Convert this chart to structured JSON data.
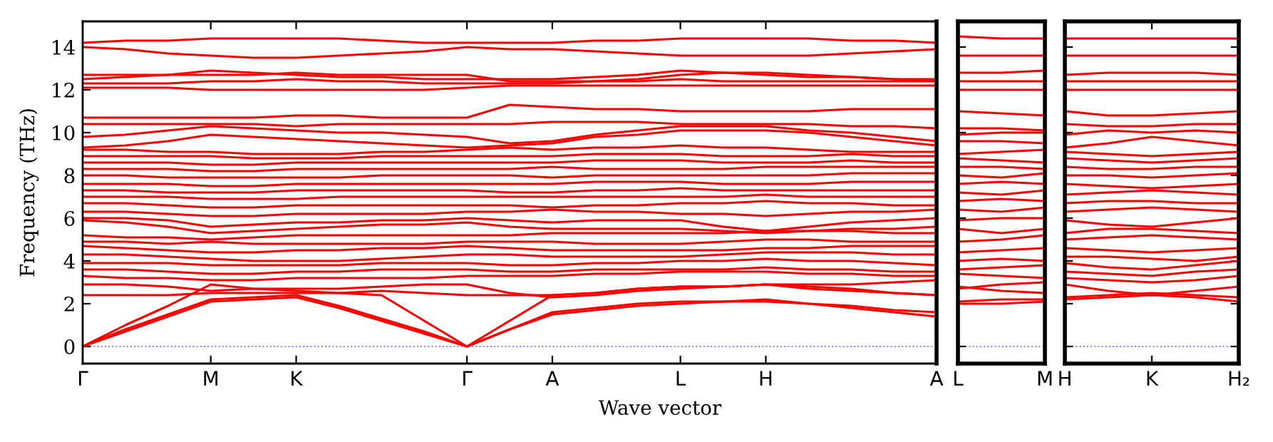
{
  "chart_data": [
    {
      "type": "line",
      "ylabel": "Frequency (THz)",
      "xlabel": "Wave vector",
      "ylim": [
        -0.8,
        15.2
      ],
      "yticks": [
        0,
        2,
        4,
        6,
        8,
        10,
        12,
        14
      ],
      "categories": [
        "Γ",
        null,
        null,
        "M",
        null,
        "K",
        null,
        null,
        null,
        "Γ",
        null,
        "A",
        null,
        null,
        "L",
        null,
        "H",
        null,
        null,
        null,
        "A"
      ],
      "grid": false,
      "legend": false,
      "marker": "none",
      "line_style": "solid",
      "ref_lines": [
        {
          "axis": "y",
          "value": 0,
          "color": "#8080ff",
          "line_style": "dotted"
        }
      ],
      "series": [
        {
          "color": "#ff0000",
          "values": [
            0,
            0.7,
            1.4,
            2.1,
            2.2,
            2.3,
            1.8,
            1.2,
            0.6,
            0,
            0.8,
            1.5,
            1.7,
            1.9,
            2.0,
            2.1,
            2.1,
            2.0,
            1.8,
            1.6,
            1.4
          ]
        },
        {
          "color": "#ff0000",
          "values": [
            0,
            0.8,
            1.5,
            2.2,
            2.3,
            2.4,
            1.9,
            1.3,
            0.7,
            0,
            0.8,
            1.6,
            1.8,
            2.0,
            2.1,
            2.1,
            2.2,
            2.0,
            1.9,
            1.7,
            1.6
          ]
        },
        {
          "color": "#ff0000",
          "values": [
            0,
            1.0,
            1.9,
            2.9,
            2.7,
            2.6,
            2.5,
            2.4,
            1.2,
            0,
            1.2,
            2.4,
            2.5,
            2.7,
            2.8,
            2.8,
            2.9,
            2.8,
            2.7,
            2.5,
            2.4
          ]
        },
        {
          "color": "#ff0000",
          "values": [
            2.4,
            2.4,
            2.4,
            2.5,
            2.5,
            2.5,
            2.5,
            2.6,
            2.5,
            2.4,
            2.4,
            2.4,
            2.5,
            2.7,
            2.8,
            2.8,
            2.9,
            2.7,
            2.6,
            2.5,
            2.4
          ]
        },
        {
          "color": "#ff0000",
          "values": [
            2.9,
            2.9,
            2.8,
            2.6,
            2.7,
            2.7,
            2.7,
            2.8,
            2.9,
            2.9,
            2.5,
            2.3,
            2.4,
            2.6,
            2.7,
            2.8,
            2.9,
            2.9,
            2.9,
            3.0,
            3.1
          ]
        },
        {
          "color": "#ff0000",
          "values": [
            3.3,
            3.2,
            3.2,
            3.1,
            3.1,
            3.2,
            3.2,
            3.2,
            3.2,
            3.3,
            3.3,
            3.3,
            3.4,
            3.4,
            3.5,
            3.5,
            3.5,
            3.4,
            3.4,
            3.3,
            3.3
          ]
        },
        {
          "color": "#ff0000",
          "values": [
            3.6,
            3.6,
            3.5,
            3.4,
            3.4,
            3.5,
            3.5,
            3.6,
            3.6,
            3.6,
            3.5,
            3.5,
            3.6,
            3.6,
            3.6,
            3.6,
            3.7,
            3.6,
            3.6,
            3.5,
            3.5
          ]
        },
        {
          "color": "#ff0000",
          "values": [
            3.9,
            3.9,
            3.9,
            3.8,
            3.8,
            3.8,
            3.8,
            3.9,
            3.9,
            3.9,
            3.8,
            3.8,
            3.9,
            3.9,
            4.0,
            4.0,
            4.1,
            4.0,
            4.0,
            3.9,
            3.8
          ]
        },
        {
          "color": "#ff0000",
          "values": [
            4.3,
            4.3,
            4.2,
            4.1,
            4.0,
            4.0,
            4.0,
            4.1,
            4.2,
            4.3,
            4.3,
            4.2,
            4.2,
            4.2,
            4.2,
            4.3,
            4.4,
            4.4,
            4.4,
            4.3,
            4.3
          ]
        },
        {
          "color": "#ff0000",
          "values": [
            4.7,
            4.6,
            4.5,
            4.4,
            4.4,
            4.5,
            4.5,
            4.6,
            4.6,
            4.7,
            4.6,
            4.5,
            4.5,
            4.5,
            4.5,
            4.5,
            4.6,
            4.6,
            4.7,
            4.7,
            4.7
          ]
        },
        {
          "color": "#ff0000",
          "values": [
            4.9,
            4.9,
            4.8,
            4.9,
            4.8,
            4.8,
            4.8,
            4.8,
            4.8,
            4.9,
            4.9,
            4.9,
            4.8,
            4.8,
            4.8,
            4.9,
            5.0,
            5.0,
            4.9,
            4.9,
            4.9
          ]
        },
        {
          "color": "#ff0000",
          "values": [
            5.2,
            5.1,
            5.1,
            5.0,
            5.1,
            5.2,
            5.2,
            5.2,
            5.2,
            5.2,
            5.2,
            5.3,
            5.3,
            5.3,
            5.3,
            5.3,
            5.4,
            5.4,
            5.4,
            5.3,
            5.3
          ]
        },
        {
          "color": "#ff0000",
          "values": [
            5.9,
            5.8,
            5.6,
            5.3,
            5.4,
            5.5,
            5.6,
            5.7,
            5.7,
            5.8,
            5.6,
            5.5,
            5.5,
            5.5,
            5.5,
            5.4,
            5.3,
            5.4,
            5.5,
            5.5,
            5.6
          ]
        },
        {
          "color": "#ff0000",
          "values": [
            6.0,
            6.0,
            5.9,
            5.6,
            5.7,
            5.8,
            5.8,
            5.9,
            5.9,
            6.0,
            5.9,
            5.8,
            5.9,
            5.9,
            5.9,
            5.6,
            5.4,
            5.6,
            5.8,
            5.9,
            6.0
          ]
        },
        {
          "color": "#ff0000",
          "values": [
            6.3,
            6.3,
            6.2,
            6.1,
            6.1,
            6.2,
            6.2,
            6.2,
            6.2,
            6.3,
            6.3,
            6.4,
            6.3,
            6.3,
            6.2,
            6.2,
            6.1,
            6.2,
            6.3,
            6.3,
            6.4
          ]
        },
        {
          "color": "#ff0000",
          "values": [
            6.7,
            6.7,
            6.6,
            6.5,
            6.5,
            6.6,
            6.6,
            6.6,
            6.6,
            6.6,
            6.6,
            6.5,
            6.6,
            6.6,
            6.7,
            6.7,
            6.8,
            6.7,
            6.7,
            6.6,
            6.6
          ]
        },
        {
          "color": "#ff0000",
          "values": [
            7.0,
            7.0,
            7.0,
            6.9,
            6.9,
            6.9,
            7.0,
            7.0,
            7.0,
            7.0,
            7.0,
            7.0,
            7.0,
            7.0,
            7.0,
            7.0,
            7.1,
            7.0,
            7.0,
            7.0,
            7.0
          ]
        },
        {
          "color": "#ff0000",
          "values": [
            7.3,
            7.3,
            7.2,
            7.2,
            7.2,
            7.3,
            7.3,
            7.3,
            7.3,
            7.3,
            7.2,
            7.2,
            7.3,
            7.3,
            7.4,
            7.3,
            7.3,
            7.3,
            7.3,
            7.3,
            7.3
          ]
        },
        {
          "color": "#ff0000",
          "values": [
            7.6,
            7.6,
            7.6,
            7.5,
            7.5,
            7.6,
            7.6,
            7.6,
            7.6,
            7.6,
            7.6,
            7.6,
            7.7,
            7.7,
            7.7,
            7.6,
            7.6,
            7.6,
            7.7,
            7.7,
            7.7
          ]
        },
        {
          "color": "#ff0000",
          "values": [
            8.0,
            8.0,
            7.9,
            7.9,
            7.9,
            7.9,
            7.9,
            8.0,
            8.0,
            8.0,
            8.0,
            7.9,
            8.0,
            8.0,
            8.0,
            8.0,
            8.0,
            8.0,
            8.1,
            8.1,
            8.1
          ]
        },
        {
          "color": "#ff0000",
          "values": [
            8.3,
            8.3,
            8.3,
            8.2,
            8.2,
            8.3,
            8.3,
            8.3,
            8.3,
            8.3,
            8.3,
            8.4,
            8.3,
            8.3,
            8.3,
            8.3,
            8.4,
            8.4,
            8.4,
            8.4,
            8.4
          ]
        },
        {
          "color": "#ff0000",
          "values": [
            8.6,
            8.6,
            8.6,
            8.5,
            8.5,
            8.6,
            8.6,
            8.6,
            8.6,
            8.6,
            8.6,
            8.6,
            8.7,
            8.7,
            8.7,
            8.6,
            8.6,
            8.6,
            8.7,
            8.6,
            8.6
          ]
        },
        {
          "color": "#ff0000",
          "values": [
            8.9,
            8.9,
            8.9,
            8.9,
            8.8,
            8.8,
            8.8,
            8.9,
            8.9,
            8.9,
            8.9,
            8.9,
            9.0,
            9.0,
            9.0,
            8.9,
            8.9,
            8.9,
            9.0,
            8.9,
            8.9
          ]
        },
        {
          "color": "#ff0000",
          "values": [
            9.2,
            9.2,
            9.1,
            9.1,
            9.0,
            9.0,
            9.0,
            9.1,
            9.1,
            9.2,
            9.3,
            9.2,
            9.3,
            9.3,
            9.4,
            9.3,
            9.3,
            9.2,
            9.1,
            9.1,
            9.1
          ]
        },
        {
          "color": "#ff0000",
          "values": [
            9.3,
            9.4,
            9.6,
            9.9,
            9.8,
            9.7,
            9.6,
            9.5,
            9.4,
            9.3,
            9.4,
            9.5,
            9.8,
            9.9,
            10.1,
            10.1,
            10.1,
            10.0,
            9.8,
            9.6,
            9.4
          ]
        },
        {
          "color": "#ff0000",
          "values": [
            9.8,
            9.9,
            10.1,
            10.3,
            10.2,
            10.1,
            10.0,
            10.0,
            9.9,
            9.8,
            9.5,
            9.6,
            9.9,
            10.1,
            10.3,
            10.3,
            10.3,
            10.1,
            10.0,
            9.8,
            9.6
          ]
        },
        {
          "color": "#ff0000",
          "values": [
            10.4,
            10.4,
            10.4,
            10.4,
            10.4,
            10.3,
            10.4,
            10.4,
            10.4,
            10.4,
            10.4,
            10.5,
            10.5,
            10.5,
            10.4,
            10.4,
            10.4,
            10.4,
            10.3,
            10.3,
            10.2
          ]
        },
        {
          "color": "#ff0000",
          "values": [
            10.7,
            10.7,
            10.7,
            10.7,
            10.7,
            10.8,
            10.8,
            10.7,
            10.7,
            10.7,
            11.3,
            11.2,
            11.1,
            11.1,
            11.0,
            11.0,
            11.0,
            11.0,
            11.1,
            11.1,
            11.1
          ]
        },
        {
          "color": "#ff0000",
          "values": [
            12.1,
            12.1,
            12.1,
            12.0,
            12.0,
            12.0,
            12.0,
            12.0,
            12.0,
            12.1,
            12.2,
            12.2,
            12.2,
            12.2,
            12.2,
            12.2,
            12.2,
            12.2,
            12.2,
            12.2,
            12.2
          ]
        },
        {
          "color": "#ff0000",
          "values": [
            12.3,
            12.3,
            12.3,
            12.4,
            12.4,
            12.5,
            12.4,
            12.4,
            12.3,
            12.3,
            12.3,
            12.3,
            12.4,
            12.4,
            12.5,
            12.4,
            12.4,
            12.4,
            12.4,
            12.4,
            12.4
          ]
        },
        {
          "color": "#ff0000",
          "values": [
            12.5,
            12.6,
            12.7,
            12.9,
            12.8,
            12.7,
            12.6,
            12.6,
            12.5,
            12.5,
            12.5,
            12.5,
            12.6,
            12.7,
            12.9,
            12.8,
            12.7,
            12.6,
            12.6,
            12.5,
            12.5
          ]
        },
        {
          "color": "#ff0000",
          "values": [
            12.7,
            12.7,
            12.7,
            12.7,
            12.7,
            12.8,
            12.7,
            12.7,
            12.7,
            12.7,
            12.4,
            12.4,
            12.4,
            12.5,
            12.7,
            12.8,
            12.8,
            12.7,
            12.6,
            12.5,
            12.4
          ]
        },
        {
          "color": "#ff0000",
          "values": [
            14.0,
            13.9,
            13.7,
            13.6,
            13.5,
            13.5,
            13.6,
            13.7,
            13.8,
            14.0,
            13.9,
            13.9,
            13.8,
            13.7,
            13.6,
            13.6,
            13.6,
            13.6,
            13.7,
            13.8,
            13.9
          ]
        },
        {
          "color": "#ff0000",
          "values": [
            14.2,
            14.3,
            14.3,
            14.4,
            14.4,
            14.4,
            14.4,
            14.3,
            14.2,
            14.2,
            14.2,
            14.2,
            14.3,
            14.3,
            14.4,
            14.4,
            14.4,
            14.4,
            14.3,
            14.3,
            14.2
          ]
        }
      ]
    },
    {
      "type": "line",
      "ylim": [
        -0.8,
        15.2
      ],
      "yticks": [
        0,
        2,
        4,
        6,
        8,
        10,
        12,
        14
      ],
      "tick_labels": "x",
      "categories": [
        "L",
        null,
        "M"
      ],
      "grid": false,
      "legend": false,
      "marker": "none",
      "line_style": "solid",
      "ref_lines": [
        {
          "axis": "y",
          "value": 0,
          "color": "#8080ff",
          "line_style": "dotted"
        }
      ],
      "series": [
        {
          "color": "#ff0000",
          "values": [
            2.0,
            2.0,
            2.1
          ]
        },
        {
          "color": "#ff0000",
          "values": [
            2.1,
            2.2,
            2.2
          ]
        },
        {
          "color": "#ff0000",
          "values": [
            2.8,
            2.6,
            2.5
          ]
        },
        {
          "color": "#ff0000",
          "values": [
            2.7,
            2.9,
            3.0
          ]
        },
        {
          "color": "#ff0000",
          "values": [
            3.4,
            3.3,
            3.2
          ]
        },
        {
          "color": "#ff0000",
          "values": [
            3.6,
            3.7,
            3.8
          ]
        },
        {
          "color": "#ff0000",
          "values": [
            4.0,
            4.1,
            4.0
          ]
        },
        {
          "color": "#ff0000",
          "values": [
            4.4,
            4.5,
            4.6
          ]
        },
        {
          "color": "#ff0000",
          "values": [
            4.9,
            5.0,
            5.2
          ]
        },
        {
          "color": "#ff0000",
          "values": [
            5.5,
            5.3,
            5.5
          ]
        },
        {
          "color": "#ff0000",
          "values": [
            5.9,
            6.0,
            6.0
          ]
        },
        {
          "color": "#ff0000",
          "values": [
            6.4,
            6.3,
            6.5
          ]
        },
        {
          "color": "#ff0000",
          "values": [
            6.8,
            6.9,
            6.8
          ]
        },
        {
          "color": "#ff0000",
          "values": [
            7.2,
            7.1,
            7.3
          ]
        },
        {
          "color": "#ff0000",
          "values": [
            7.6,
            7.7,
            7.6
          ]
        },
        {
          "color": "#ff0000",
          "values": [
            8.0,
            7.9,
            8.1
          ]
        },
        {
          "color": "#ff0000",
          "values": [
            8.4,
            8.4,
            8.3
          ]
        },
        {
          "color": "#ff0000",
          "values": [
            8.8,
            8.7,
            8.6
          ]
        },
        {
          "color": "#ff0000",
          "values": [
            9.0,
            9.1,
            9.2
          ]
        },
        {
          "color": "#ff0000",
          "values": [
            9.6,
            9.6,
            9.5
          ]
        },
        {
          "color": "#ff0000",
          "values": [
            9.9,
            10.0,
            10.0
          ]
        },
        {
          "color": "#ff0000",
          "values": [
            10.2,
            10.2,
            10.1
          ]
        },
        {
          "color": "#ff0000",
          "values": [
            11.0,
            10.9,
            10.8
          ]
        },
        {
          "color": "#ff0000",
          "values": [
            12.0,
            12.0,
            12.0
          ]
        },
        {
          "color": "#ff0000",
          "values": [
            12.4,
            12.4,
            12.4
          ]
        },
        {
          "color": "#ff0000",
          "values": [
            12.8,
            12.8,
            12.9
          ]
        },
        {
          "color": "#ff0000",
          "values": [
            13.6,
            13.6,
            13.6
          ]
        },
        {
          "color": "#ff0000",
          "values": [
            14.5,
            14.4,
            14.4
          ]
        }
      ]
    },
    {
      "type": "line",
      "ylim": [
        -0.8,
        15.2
      ],
      "yticks": [
        0,
        2,
        4,
        6,
        8,
        10,
        12,
        14
      ],
      "tick_labels": "x",
      "categories": [
        "H",
        null,
        "K",
        null,
        "H₂"
      ],
      "grid": false,
      "legend": false,
      "marker": "none",
      "line_style": "solid",
      "ref_lines": [
        {
          "axis": "y",
          "value": 0,
          "color": "#8080ff",
          "line_style": "dotted"
        }
      ],
      "series": [
        {
          "color": "#ff0000",
          "values": [
            2.2,
            2.3,
            2.4,
            2.3,
            2.1
          ]
        },
        {
          "color": "#ff0000",
          "values": [
            2.3,
            2.4,
            2.5,
            2.4,
            2.3
          ]
        },
        {
          "color": "#ff0000",
          "values": [
            2.9,
            2.6,
            2.4,
            2.6,
            2.8
          ]
        },
        {
          "color": "#ff0000",
          "values": [
            3.2,
            3.1,
            3.0,
            3.1,
            3.3
          ]
        },
        {
          "color": "#ff0000",
          "values": [
            3.5,
            3.4,
            3.3,
            3.5,
            3.6
          ]
        },
        {
          "color": "#ff0000",
          "values": [
            3.9,
            3.7,
            3.6,
            3.8,
            4.0
          ]
        },
        {
          "color": "#ff0000",
          "values": [
            4.2,
            4.2,
            4.1,
            4.0,
            4.2
          ]
        },
        {
          "color": "#ff0000",
          "values": [
            4.6,
            4.5,
            4.4,
            4.5,
            4.6
          ]
        },
        {
          "color": "#ff0000",
          "values": [
            5.0,
            5.1,
            5.2,
            5.1,
            5.0
          ]
        },
        {
          "color": "#ff0000",
          "values": [
            5.3,
            5.5,
            5.5,
            5.4,
            5.3
          ]
        },
        {
          "color": "#ff0000",
          "values": [
            5.9,
            5.7,
            5.6,
            5.8,
            6.0
          ]
        },
        {
          "color": "#ff0000",
          "values": [
            6.3,
            6.4,
            6.5,
            6.4,
            6.3
          ]
        },
        {
          "color": "#ff0000",
          "values": [
            6.7,
            6.8,
            6.8,
            6.7,
            6.7
          ]
        },
        {
          "color": "#ff0000",
          "values": [
            7.1,
            7.2,
            7.3,
            7.2,
            7.1
          ]
        },
        {
          "color": "#ff0000",
          "values": [
            7.6,
            7.5,
            7.4,
            7.5,
            7.6
          ]
        },
        {
          "color": "#ff0000",
          "values": [
            8.0,
            8.0,
            7.9,
            8.0,
            8.1
          ]
        },
        {
          "color": "#ff0000",
          "values": [
            8.4,
            8.3,
            8.3,
            8.4,
            8.4
          ]
        },
        {
          "color": "#ff0000",
          "values": [
            8.8,
            8.7,
            8.6,
            8.7,
            8.8
          ]
        },
        {
          "color": "#ff0000",
          "values": [
            9.1,
            9.0,
            8.9,
            9.0,
            9.1
          ]
        },
        {
          "color": "#ff0000",
          "values": [
            9.3,
            9.5,
            9.8,
            9.6,
            9.4
          ]
        },
        {
          "color": "#ff0000",
          "values": [
            9.9,
            10.1,
            10.0,
            10.1,
            10.0
          ]
        },
        {
          "color": "#ff0000",
          "values": [
            10.4,
            10.3,
            10.3,
            10.4,
            10.4
          ]
        },
        {
          "color": "#ff0000",
          "values": [
            11.0,
            10.8,
            10.8,
            10.9,
            11.0
          ]
        },
        {
          "color": "#ff0000",
          "values": [
            12.0,
            12.0,
            12.0,
            12.0,
            12.0
          ]
        },
        {
          "color": "#ff0000",
          "values": [
            12.4,
            12.4,
            12.4,
            12.4,
            12.4
          ]
        },
        {
          "color": "#ff0000",
          "values": [
            12.7,
            12.8,
            12.8,
            12.8,
            12.7
          ]
        },
        {
          "color": "#ff0000",
          "values": [
            13.6,
            13.6,
            13.6,
            13.6,
            13.6
          ]
        },
        {
          "color": "#ff0000",
          "values": [
            14.4,
            14.4,
            14.4,
            14.4,
            14.4
          ]
        }
      ]
    }
  ]
}
